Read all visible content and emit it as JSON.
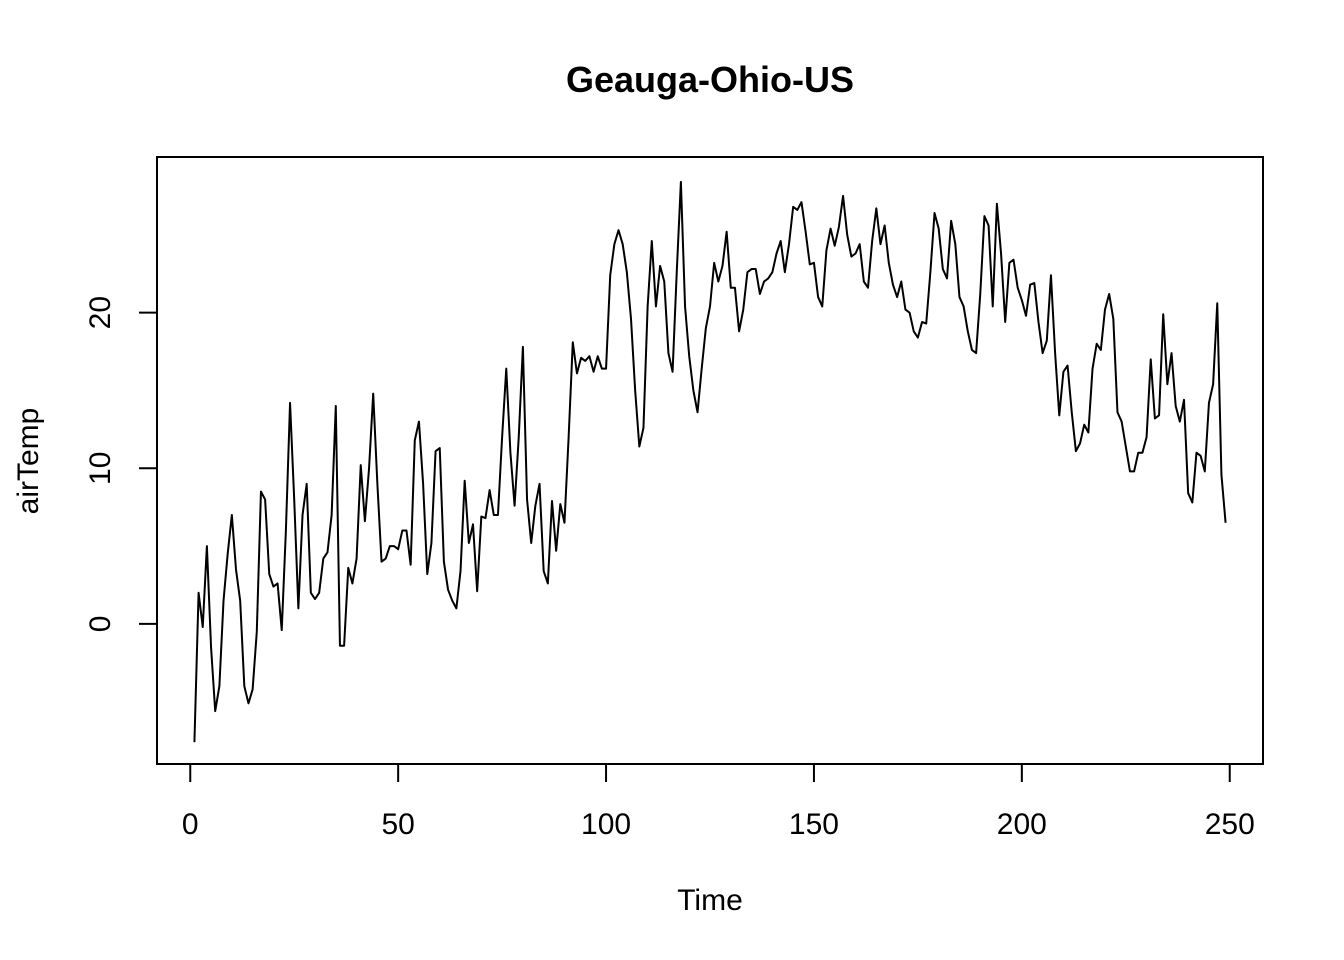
{
  "chart_data": {
    "type": "line",
    "title": "Geauga-Ohio-US",
    "xlabel": "Time",
    "ylabel": "airTemp",
    "xlim": [
      -8,
      258
    ],
    "ylim": [
      -9,
      30
    ],
    "x_ticks": [
      0,
      50,
      100,
      150,
      200,
      250
    ],
    "y_ticks": [
      0,
      10,
      20
    ],
    "grid": false,
    "series": [
      {
        "values": [
          -7.6,
          2.0,
          -0.2,
          5.0,
          -1.5,
          -5.6,
          -4.0,
          1.5,
          4.5,
          7.0,
          3.5,
          1.5,
          -4.0,
          -5.1,
          -4.2,
          -0.5,
          8.5,
          8.0,
          3.2,
          2.4,
          2.6,
          -0.4,
          6.0,
          14.2,
          8.0,
          1.0,
          7.0,
          9.0,
          2.0,
          1.6,
          2.0,
          4.2,
          4.6,
          7.0,
          14.0,
          -1.4,
          -1.4,
          3.6,
          2.6,
          4.2,
          10.2,
          6.6,
          10.0,
          14.8,
          9.0,
          4.0,
          4.2,
          5.0,
          5.0,
          4.8,
          6.0,
          6.0,
          3.8,
          11.8,
          13.0,
          9.0,
          3.2,
          5.2,
          11.1,
          11.3,
          4.0,
          2.2,
          1.5,
          1.0,
          3.4,
          9.2,
          5.2,
          6.4,
          2.1,
          6.9,
          6.8,
          8.6,
          7.0,
          7.0,
          12.0,
          16.4,
          11.0,
          7.6,
          12.0,
          17.8,
          8.0,
          5.2,
          7.6,
          9.0,
          3.4,
          2.6,
          7.9,
          4.7,
          7.7,
          6.5,
          12.0,
          18.1,
          16.1,
          17.1,
          16.9,
          17.2,
          16.2,
          17.2,
          16.4,
          16.4,
          22.4,
          24.4,
          25.3,
          24.4,
          22.6,
          19.6,
          15.0,
          11.4,
          12.6,
          20.4,
          24.6,
          20.4,
          23.0,
          22.0,
          17.4,
          16.2,
          22.6,
          28.4,
          20.4,
          17.2,
          15.0,
          13.6,
          16.4,
          19.0,
          20.4,
          23.2,
          22.0,
          23.0,
          25.2,
          21.6,
          21.6,
          18.8,
          20.2,
          22.6,
          22.8,
          22.8,
          21.2,
          22.0,
          22.2,
          22.6,
          23.8,
          24.6,
          22.6,
          24.4,
          26.8,
          26.6,
          27.1,
          25.2,
          23.1,
          23.2,
          21.0,
          20.4,
          24.0,
          25.4,
          24.3,
          25.5,
          27.5,
          25.0,
          23.6,
          23.8,
          24.4,
          22.0,
          21.6,
          24.6,
          26.7,
          24.4,
          25.6,
          23.2,
          21.8,
          21.0,
          22.0,
          20.2,
          20.0,
          18.8,
          18.4,
          19.4,
          19.3,
          22.6,
          26.4,
          25.4,
          22.8,
          22.2,
          25.9,
          24.4,
          21.0,
          20.4,
          18.8,
          17.6,
          17.4,
          21.2,
          26.2,
          25.6,
          20.4,
          27.0,
          23.8,
          19.4,
          23.2,
          23.4,
          21.6,
          20.8,
          19.8,
          21.8,
          21.9,
          19.4,
          17.4,
          18.2,
          22.4,
          17.4,
          13.4,
          16.2,
          16.6,
          13.6,
          11.1,
          11.6,
          12.8,
          12.3,
          16.4,
          18.0,
          17.6,
          20.2,
          21.2,
          19.6,
          13.6,
          13.0,
          11.4,
          9.8,
          9.8,
          11.0,
          11.0,
          12.0,
          17.0,
          13.2,
          13.4,
          19.9,
          15.4,
          17.4,
          14.0,
          13.0,
          14.4,
          8.4,
          7.8,
          11.0,
          10.8,
          9.8,
          14.2,
          15.4,
          20.6,
          9.6,
          6.5
        ]
      }
    ]
  }
}
